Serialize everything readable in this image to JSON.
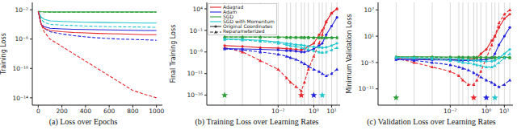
{
  "chart_data": [
    {
      "type": "line",
      "title": "(a) Loss over Epochs",
      "y_label": "Training Loss",
      "log": "y",
      "x": [
        0,
        25,
        50,
        100,
        200,
        300,
        400,
        500,
        600,
        700,
        800,
        900,
        1000
      ],
      "xlim": [
        -50,
        1050
      ],
      "xticks": [
        0,
        200,
        400,
        600,
        800,
        1000
      ],
      "ylim": [
        1e-15,
        0.1
      ],
      "yticks": [
        {
          "value": 0.01,
          "label": "10⁻²"
        },
        {
          "value": 1e-06,
          "label": "10⁻⁶"
        },
        {
          "value": 1e-10,
          "label": "10⁻¹⁰"
        },
        {
          "value": 1e-14,
          "label": "10⁻¹⁴"
        }
      ],
      "series": [
        {
          "name": "SGD",
          "color": "#2e9e3a",
          "line_style": "solid",
          "values": [
            0.006,
            0.0055,
            0.0052,
            0.005,
            0.005,
            0.005,
            0.005,
            0.005,
            0.005,
            0.005,
            0.005,
            0.005,
            0.005
          ]
        },
        {
          "name": "SGD",
          "color": "#2e9e3a",
          "line_style": "dashed",
          "values": [
            0.006,
            0.005,
            0.0048,
            0.0046,
            0.0045,
            0.0045,
            0.0045,
            0.0045,
            0.0045,
            0.0045,
            0.0045,
            0.0045,
            0.0045
          ]
        },
        {
          "name": "SGD with Momentum",
          "color": "#22c6cf",
          "line_style": "solid",
          "values": [
            0.006,
            0.001,
            0.0005,
            0.0003,
            0.00025,
            0.00022,
            0.0002,
            0.00019,
            0.00018,
            0.00017,
            0.00016,
            0.00015,
            0.00015
          ]
        },
        {
          "name": "SGD with Momentum",
          "color": "#22c6cf",
          "line_style": "dashed",
          "values": [
            0.006,
            0.0005,
            0.0002,
            0.0001,
            8e-05,
            7e-05,
            6e-05,
            5.5e-05,
            5e-05,
            4.8e-05,
            4.5e-05,
            4.3e-05,
            4e-05
          ]
        },
        {
          "name": "Adam",
          "color": "#2424dc",
          "line_style": "solid",
          "values": [
            0.006,
            0.0001,
            5e-05,
            3e-05,
            2.5e-05,
            2.2e-05,
            2e-05,
            1.9e-05,
            1.8e-05,
            1.7e-05,
            1.6e-05,
            1.5e-05,
            1.5e-05
          ]
        },
        {
          "name": "Adam",
          "color": "#2424dc",
          "line_style": "dashed",
          "values": [
            0.006,
            0.0001,
            3e-05,
            1e-05,
            5e-06,
            3e-06,
            2e-06,
            1.5e-06,
            1.2e-06,
            1e-06,
            9e-07,
            8e-07,
            7e-07
          ]
        },
        {
          "name": "Adagrad",
          "color": "#e6262b",
          "line_style": "solid",
          "values": [
            0.006,
            0.0001,
            3e-05,
            1.5e-05,
            1e-05,
            8e-06,
            7e-06,
            6e-06,
            5.5e-06,
            5e-06,
            4.5e-06,
            4e-06,
            4e-06
          ]
        },
        {
          "name": "Adagrad",
          "color": "#e6262b",
          "line_style": "dashed",
          "values": [
            0.006,
            0.0001,
            1e-05,
            1e-06,
            1e-07,
            1e-08,
            1e-09,
            1e-10,
            1e-11,
            1e-12,
            1e-13,
            3e-14,
            1e-14
          ]
        }
      ]
    },
    {
      "type": "line",
      "title": "(b) Training Loss over Learning Rates",
      "y_label": "Final Training Loss",
      "log": true,
      "grid": true,
      "legend": "upper left",
      "x": [
        1e-05,
        0.0001,
        0.001,
        0.01,
        0.03,
        0.05,
        0.1,
        0.2,
        0.3,
        0.5,
        1,
        2,
        3,
        5,
        10,
        20
      ],
      "xlim": [
        1e-06,
        30
      ],
      "xticks": [
        {
          "value": 0.01,
          "label": "10⁻²"
        },
        {
          "value": 1,
          "label": "10⁰"
        },
        {
          "value": 10,
          "label": "10¹"
        }
      ],
      "ylim": [
        5e-19,
        300000.0
      ],
      "yticks": [
        {
          "value": 10000.0,
          "label": "10⁴"
        },
        {
          "value": 0.1,
          "label": "10⁻¹"
        },
        {
          "value": 1e-06,
          "label": "10⁻⁶"
        },
        {
          "value": 1e-11,
          "label": "10⁻¹¹"
        },
        {
          "value": 1e-16,
          "label": "10⁻¹⁶"
        }
      ],
      "line_styles": [
        {
          "name": "Original Coordinates",
          "line_style": "solid",
          "marker": "circle"
        },
        {
          "name": "Reparameterized",
          "line_style": "dashed",
          "marker": "triangle"
        }
      ],
      "series": [
        {
          "name": "Adagrad",
          "color": "#e6262b",
          "line_style": "solid",
          "marker": "circle",
          "values": [
            3e-05,
            2e-05,
            1e-05,
            8e-06,
            6e-06,
            5e-06,
            4e-06,
            3e-06,
            5e-06,
            2e-05,
            0.0001,
            0.01,
            0.1,
            10,
            1000.0,
            10000.0
          ]
        },
        {
          "name": "Adagrad",
          "color": "#e6262b",
          "line_style": "dashed",
          "marker": "triangle",
          "values": [
            1e-05,
            1e-06,
            1e-08,
            1e-10,
            1e-12,
            1e-13,
            1e-14,
            1e-15,
            1e-13,
            1e-10,
            1e-07,
            0.0001,
            0.01,
            10,
            1000.0,
            10000.0
          ]
        },
        {
          "name": "Adam",
          "color": "#2424dc",
          "line_style": "solid",
          "marker": "circle",
          "values": [
            6e-06,
            5e-06,
            4e-06,
            3e-06,
            2e-06,
            2e-06,
            1.5e-06,
            1e-06,
            1e-06,
            2e-06,
            5e-06,
            3e-05,
            0.0001,
            0.01,
            1,
            100
          ]
        },
        {
          "name": "Adam",
          "color": "#2424dc",
          "line_style": "dashed",
          "marker": "triangle",
          "values": [
            5e-06,
            3e-06,
            1e-06,
            3e-07,
            1e-07,
            5e-08,
            2e-08,
            5e-09,
            2e-09,
            5e-10,
            1e-10,
            3e-11,
            1e-11,
            3e-12,
            1e-11,
            1e-10
          ]
        },
        {
          "name": "SGD",
          "color": "#2e9e3a",
          "line_style": "solid",
          "marker": "circle",
          "values": [
            0.003,
            0.003,
            0.003,
            0.003,
            0.0028,
            0.0028,
            0.0027,
            0.0027,
            0.0026,
            0.0026,
            0.0025,
            0.0025,
            0.0025,
            0.0025,
            0.0025,
            0.0025
          ]
        },
        {
          "name": "SGD",
          "color": "#2e9e3a",
          "line_style": "dashed",
          "marker": "triangle",
          "values": [
            0.003,
            0.0028,
            0.0026,
            0.0024,
            0.0022,
            0.0021,
            0.002,
            0.002,
            0.0019,
            0.0019,
            0.0018,
            0.0018,
            0.0018,
            0.0018,
            0.0018,
            0.0018
          ]
        },
        {
          "name": "SGD with Momentum",
          "color": "#22c6cf",
          "line_style": "solid",
          "marker": "circle",
          "values": [
            0.001,
            0.0008,
            0.0005,
            0.0002,
            0.0001,
            8e-05,
            5e-05,
            4e-05,
            3e-05,
            2e-05,
            1.5e-05,
            1.2e-05,
            1e-05,
            1.2e-05,
            3e-05,
            0.0001
          ]
        },
        {
          "name": "SGD with Momentum",
          "color": "#22c6cf",
          "line_style": "dashed",
          "marker": "triangle",
          "values": [
            0.0008,
            0.0006,
            0.0003,
            0.0001,
            5e-05,
            3e-05,
            2e-05,
            1e-05,
            7e-06,
            4e-06,
            2e-06,
            1e-06,
            8e-07,
            1e-06,
            3e-06,
            1e-05
          ]
        }
      ],
      "best_lr": [
        {
          "x": 1e-05,
          "y": 1e-16,
          "color": "#2e9e3a"
        },
        {
          "x": 0.2,
          "y": 1e-16,
          "color": "#e6262b"
        },
        {
          "x": 1,
          "y": 1e-16,
          "color": "#2424dc"
        },
        {
          "x": 3,
          "y": 1e-16,
          "color": "#22c6cf"
        }
      ]
    },
    {
      "type": "line",
      "title": "(c) Validation Loss over Learning Rates",
      "y_label": "Minimum Validation Loss",
      "log": true,
      "grid": true,
      "x": [
        1e-05,
        0.0001,
        0.001,
        0.01,
        0.03,
        0.05,
        0.1,
        0.2,
        0.3,
        0.5,
        1,
        2,
        3,
        5,
        10,
        20
      ],
      "xlim": [
        1e-06,
        30
      ],
      "xticks": [
        {
          "value": 0.01,
          "label": "10⁻²"
        },
        {
          "value": 1,
          "label": "10⁰"
        },
        {
          "value": 10,
          "label": "10¹"
        }
      ],
      "ylim": [
        2e-15,
        500000000.0
      ],
      "yticks": [
        {
          "value": 10000000.0,
          "label": "10⁷"
        },
        {
          "value": 10,
          "label": "10¹"
        },
        {
          "value": 1e-05,
          "label": "10⁻⁵"
        },
        {
          "value": 1e-11,
          "label": "10⁻¹¹"
        }
      ],
      "series": [
        {
          "name": "Adagrad",
          "color": "#e6262b",
          "line_style": "solid",
          "marker": "circle",
          "values": [
            0.0001,
            8e-05,
            6e-05,
            5e-05,
            5e-05,
            5e-05,
            6e-05,
            8e-05,
            0.0001,
            0.001,
            0.01,
            1,
            10,
            1000.0,
            100000.0,
            1000000.0
          ]
        },
        {
          "name": "Adagrad",
          "color": "#e6262b",
          "line_style": "dashed",
          "marker": "triangle",
          "values": [
            0.0001,
            1e-05,
            1e-06,
            1e-07,
            1e-08,
            1e-09,
            1e-10,
            1e-10,
            1e-09,
            1e-07,
            0.0001,
            0.1,
            10,
            10000.0,
            1000000.0,
            10000000.0
          ]
        },
        {
          "name": "Adam",
          "color": "#2424dc",
          "line_style": "solid",
          "marker": "circle",
          "values": [
            5e-05,
            5e-05,
            4e-05,
            4e-05,
            3e-05,
            3e-05,
            3e-05,
            3e-05,
            3e-05,
            4e-05,
            5e-05,
            0.0001,
            0.001,
            0.1,
            10,
            1000.0
          ]
        },
        {
          "name": "Adam",
          "color": "#2424dc",
          "line_style": "dashed",
          "marker": "triangle",
          "values": [
            5e-05,
            3e-05,
            1e-05,
            3e-06,
            1e-06,
            5e-07,
            2e-07,
            5e-08,
            2e-08,
            5e-09,
            1e-09,
            3e-10,
            1e-10,
            3e-11,
            1e-10,
            1e-09
          ]
        },
        {
          "name": "SGD",
          "color": "#2e9e3a",
          "line_style": "solid",
          "marker": "circle",
          "values": [
            0.0002,
            0.0002,
            0.0002,
            0.00019,
            0.00019,
            0.00018,
            0.00018,
            0.00018,
            0.00017,
            0.00017,
            0.00017,
            0.00016,
            0.00016,
            0.00016,
            0.00016,
            0.00016
          ]
        },
        {
          "name": "SGD",
          "color": "#2e9e3a",
          "line_style": "dashed",
          "marker": "triangle",
          "values": [
            0.0002,
            0.00018,
            0.00016,
            0.00015,
            0.00014,
            0.00014,
            0.00013,
            0.00013,
            0.00013,
            0.00012,
            0.00012,
            0.00012,
            0.00012,
            0.00012,
            0.00012,
            0.00012
          ]
        },
        {
          "name": "SGD with Momentum",
          "color": "#22c6cf",
          "line_style": "solid",
          "marker": "circle",
          "values": [
            0.00015,
            0.00012,
            0.0001,
            8e-05,
            6e-05,
            5e-05,
            4e-05,
            3e-05,
            3e-05,
            2e-05,
            2e-05,
            2e-05,
            3e-05,
            0.0001,
            0.001,
            0.01
          ]
        },
        {
          "name": "SGD with Momentum",
          "color": "#22c6cf",
          "line_style": "dashed",
          "marker": "triangle",
          "values": [
            0.00012,
            0.0001,
            6e-05,
            3e-05,
            2e-05,
            1e-05,
            8e-06,
            5e-06,
            3e-06,
            2e-06,
            1e-06,
            1e-06,
            2e-06,
            1e-05,
            0.0001,
            0.001
          ]
        }
      ],
      "best_lr": [
        {
          "x": 1e-05,
          "y": 1e-13,
          "color": "#2e9e3a"
        },
        {
          "x": 0.2,
          "y": 1e-13,
          "color": "#e6262b"
        },
        {
          "x": 1,
          "y": 1e-13,
          "color": "#2424dc"
        },
        {
          "x": 3,
          "y": 1e-13,
          "color": "#22c6cf"
        }
      ]
    }
  ]
}
